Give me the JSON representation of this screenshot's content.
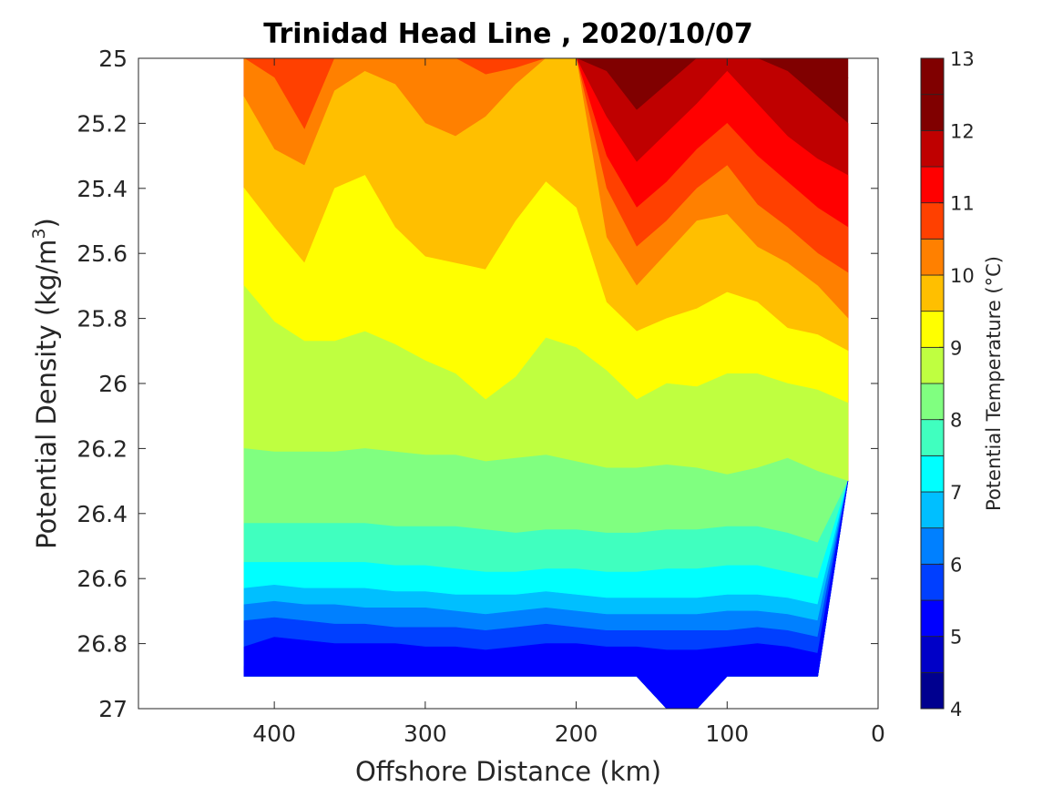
{
  "chart_data": {
    "type": "heatmap",
    "title": "Trinidad Head Line , 2020/10/07",
    "xlabel": "Offshore Distance (km)",
    "ylabel_parts": {
      "main": "Potential Density (kg/m",
      "sup": "3",
      "close": ")"
    },
    "xlim": [
      490,
      0
    ],
    "ylim": [
      25,
      27
    ],
    "x_ticks": [
      "400",
      "300",
      "200",
      "100",
      "0"
    ],
    "x_tick_values": [
      400,
      300,
      200,
      100,
      0
    ],
    "y_ticks": [
      "25",
      "25.2",
      "25.4",
      "25.6",
      "25.8",
      "26",
      "26.2",
      "26.4",
      "26.6",
      "26.8",
      "27"
    ],
    "y_tick_values": [
      25,
      25.2,
      25.4,
      25.6,
      25.8,
      26,
      26.2,
      26.4,
      26.6,
      26.8,
      27
    ],
    "colorbar": {
      "label": "Potential Temperature (°C)",
      "ticks": [
        "4",
        "5",
        "6",
        "7",
        "8",
        "9",
        "10",
        "11",
        "12",
        "13"
      ],
      "range": [
        4,
        13
      ],
      "step": 0.5,
      "colors": [
        "#00008f",
        "#0000c7",
        "#0000ff",
        "#003fff",
        "#0080ff",
        "#00bfff",
        "#00ffff",
        "#40ffbf",
        "#80ff80",
        "#bfff40",
        "#ffff00",
        "#ffbf00",
        "#ff8000",
        "#ff4000",
        "#ff0000",
        "#bf0000",
        "#800000",
        "#800000"
      ]
    },
    "data_extent_x_km": [
      420,
      20
    ],
    "sample_x_km": [
      420,
      400,
      380,
      360,
      340,
      320,
      300,
      280,
      260,
      240,
      220,
      200,
      180,
      160,
      140,
      120,
      100,
      80,
      60,
      40,
      20
    ],
    "contours": [
      {
        "level": 5.0,
        "sigma": [
          26.87,
          26.85,
          26.85,
          26.86,
          26.87,
          26.87,
          26.87,
          26.87,
          26.88,
          26.87,
          26.86,
          26.86,
          26.87,
          26.88,
          26.9,
          26.9,
          26.88,
          26.87,
          26.88,
          26.88,
          26.9
        ]
      },
      {
        "level": 5.5,
        "sigma": [
          26.81,
          26.78,
          26.79,
          26.8,
          26.8,
          26.8,
          26.81,
          26.81,
          26.82,
          26.81,
          26.8,
          26.8,
          26.81,
          26.81,
          26.82,
          26.82,
          26.81,
          26.8,
          26.81,
          26.83,
          26.8
        ]
      },
      {
        "level": 6.0,
        "sigma": [
          26.73,
          26.72,
          26.73,
          26.74,
          26.74,
          26.75,
          26.75,
          26.75,
          26.76,
          26.75,
          26.74,
          26.75,
          26.76,
          26.76,
          26.76,
          26.76,
          26.76,
          26.75,
          26.76,
          26.78,
          26.77
        ]
      },
      {
        "level": 6.5,
        "sigma": [
          26.68,
          26.67,
          26.68,
          26.68,
          26.69,
          26.69,
          26.69,
          26.7,
          26.71,
          26.7,
          26.69,
          26.7,
          26.71,
          26.71,
          26.71,
          26.71,
          26.7,
          26.7,
          26.71,
          26.73,
          26.73
        ]
      },
      {
        "level": 7.0,
        "sigma": [
          26.63,
          26.62,
          26.63,
          26.63,
          26.63,
          26.64,
          26.64,
          26.65,
          26.65,
          26.65,
          26.64,
          26.65,
          26.66,
          26.66,
          26.66,
          26.66,
          26.65,
          26.65,
          26.66,
          26.68,
          26.69
        ]
      },
      {
        "level": 7.5,
        "sigma": [
          26.55,
          26.55,
          26.55,
          26.55,
          26.55,
          26.56,
          26.56,
          26.57,
          26.58,
          26.58,
          26.57,
          26.57,
          26.58,
          26.58,
          26.57,
          26.57,
          26.56,
          26.56,
          26.58,
          26.6,
          26.62
        ]
      },
      {
        "level": 8.0,
        "sigma": [
          26.43,
          26.43,
          26.43,
          26.43,
          26.43,
          26.44,
          26.44,
          26.44,
          26.45,
          26.46,
          26.45,
          26.45,
          26.46,
          26.46,
          26.45,
          26.45,
          26.44,
          26.44,
          26.46,
          26.49,
          26.52
        ]
      },
      {
        "level": 8.5,
        "sigma": [
          26.2,
          26.21,
          26.21,
          26.21,
          26.2,
          26.21,
          26.22,
          26.22,
          26.24,
          26.23,
          26.22,
          26.24,
          26.26,
          26.26,
          26.25,
          26.26,
          26.28,
          26.26,
          26.23,
          26.27,
          26.3
        ]
      },
      {
        "level": 9.0,
        "sigma": [
          25.7,
          25.81,
          25.87,
          25.87,
          25.84,
          25.88,
          25.93,
          25.97,
          26.05,
          25.98,
          25.86,
          25.89,
          25.96,
          26.05,
          26.0,
          26.01,
          25.97,
          25.97,
          26.0,
          26.02,
          26.06
        ]
      },
      {
        "level": 9.5,
        "sigma": [
          25.4,
          25.52,
          25.63,
          25.4,
          25.36,
          25.52,
          25.61,
          25.63,
          25.65,
          25.5,
          25.38,
          25.46,
          25.75,
          25.84,
          25.8,
          25.77,
          25.72,
          25.75,
          25.83,
          25.85,
          25.9
        ]
      },
      {
        "level": 10.0,
        "sigma": [
          25.12,
          25.28,
          25.33,
          25.1,
          25.04,
          25.08,
          25.2,
          25.24,
          25.18,
          25.08,
          25.0,
          25.0,
          25.55,
          25.7,
          25.6,
          25.5,
          25.48,
          25.58,
          25.63,
          25.7,
          25.8
        ]
      },
      {
        "level": 10.5,
        "sigma": [
          25.0,
          25.06,
          25.22,
          25.0,
          25.0,
          25.0,
          25.0,
          25.0,
          25.05,
          25.03,
          25.0,
          25.0,
          25.4,
          25.58,
          25.5,
          25.4,
          25.33,
          25.45,
          25.52,
          25.6,
          25.66
        ]
      },
      {
        "level": 11.0,
        "sigma": [
          25.0,
          25.0,
          25.0,
          25.0,
          25.0,
          25.0,
          25.0,
          25.0,
          25.0,
          25.0,
          25.0,
          25.0,
          25.3,
          25.46,
          25.38,
          25.28,
          25.2,
          25.3,
          25.38,
          25.46,
          25.52
        ]
      },
      {
        "level": 11.5,
        "sigma": [
          25.0,
          25.0,
          25.0,
          25.0,
          25.0,
          25.0,
          25.0,
          25.0,
          25.0,
          25.0,
          25.0,
          25.0,
          25.18,
          25.32,
          25.23,
          25.14,
          25.04,
          25.14,
          25.24,
          25.31,
          25.36
        ]
      },
      {
        "level": 12.0,
        "sigma": [
          25.0,
          25.0,
          25.0,
          25.0,
          25.0,
          25.0,
          25.0,
          25.0,
          25.0,
          25.0,
          25.0,
          25.0,
          25.04,
          25.16,
          25.08,
          25.0,
          25.0,
          25.0,
          25.04,
          25.12,
          25.2
        ]
      },
      {
        "level": 12.5,
        "sigma": [
          25.0,
          25.0,
          25.0,
          25.0,
          25.0,
          25.0,
          25.0,
          25.0,
          25.0,
          25.0,
          25.0,
          25.0,
          25.0,
          25.0,
          25.0,
          25.0,
          25.0,
          25.0,
          25.0,
          25.0,
          25.06
        ]
      }
    ],
    "bottom_sigma": [
      26.9,
      26.9,
      26.9,
      26.9,
      26.9,
      26.9,
      26.9,
      26.9,
      26.9,
      26.9,
      26.9,
      26.9,
      26.9,
      26.9,
      27.0,
      27.0,
      26.9,
      26.9,
      26.9,
      26.9,
      26.3
    ],
    "grid": false,
    "colorbar_position": "right"
  }
}
